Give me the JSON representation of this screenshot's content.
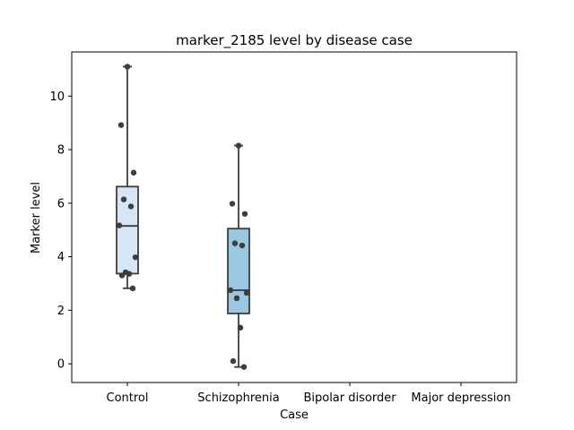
{
  "chart_data": {
    "type": "box",
    "title": "marker_2185 level by disease case",
    "xlabel": "Case",
    "ylabel": "Marker level",
    "ylim": [
      -0.7,
      11.65
    ],
    "yticks": [
      0,
      2,
      4,
      6,
      8,
      10
    ],
    "categories": [
      "Control",
      "Schizophrenia",
      "Bipolar disorder",
      "Major depression"
    ],
    "grid": false,
    "boxes": [
      {
        "category": "Control",
        "color": "#d6e6f4",
        "whisker_low": 2.82,
        "q1": 3.37,
        "median": 5.15,
        "q3": 6.62,
        "whisker_high": 11.1,
        "points": [
          11.1,
          8.92,
          7.14,
          6.14,
          5.88,
          5.17,
          3.98,
          3.42,
          3.36,
          3.3,
          2.82
        ]
      },
      {
        "category": "Schizophrenia",
        "color": "#9ac8e0",
        "whisker_low": -0.12,
        "q1": 1.88,
        "median": 2.75,
        "q3": 5.05,
        "whisker_high": 8.15,
        "points": [
          8.15,
          5.98,
          5.6,
          4.5,
          4.42,
          2.75,
          2.65,
          2.45,
          1.35,
          0.1,
          -0.12
        ]
      },
      {
        "category": "Bipolar disorder",
        "color": "#4a98c9",
        "points": []
      },
      {
        "category": "Major depression",
        "color": "#1764ab",
        "points": []
      }
    ]
  }
}
